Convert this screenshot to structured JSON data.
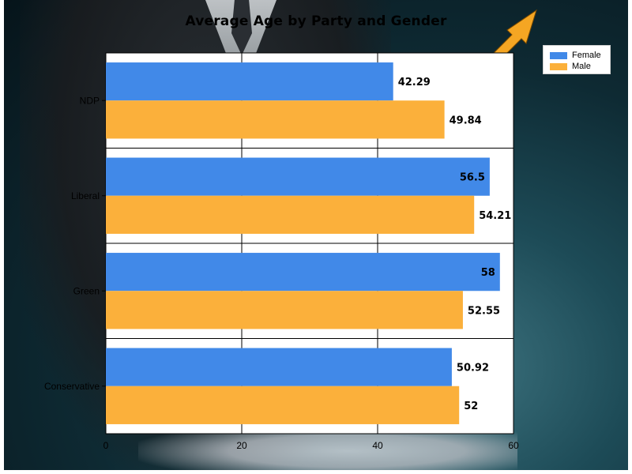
{
  "chart_data": {
    "type": "bar",
    "orientation": "horizontal",
    "title": "Average Age by Party and Gender",
    "categories": [
      "NDP",
      "Liberal",
      "Green",
      "Conservative"
    ],
    "series": [
      {
        "name": "Female",
        "color": "#4189e8",
        "values": [
          42.29,
          56.5,
          58,
          50.92
        ],
        "labels": [
          "42.29",
          "56.5",
          "58",
          "50.92"
        ]
      },
      {
        "name": "Male",
        "color": "#fbb03b",
        "values": [
          49.84,
          54.21,
          52.55,
          52
        ],
        "labels": [
          "49.84",
          "54.21",
          "52.55",
          "52"
        ]
      }
    ],
    "xlim": [
      0,
      60
    ],
    "xticks": [
      0,
      20,
      40,
      60
    ],
    "xtick_labels": [
      "0",
      "20",
      "40",
      "60"
    ],
    "grid": "vertical",
    "legend_position": "top-right"
  },
  "decoration": {
    "arrow_color": "#f5a623"
  }
}
